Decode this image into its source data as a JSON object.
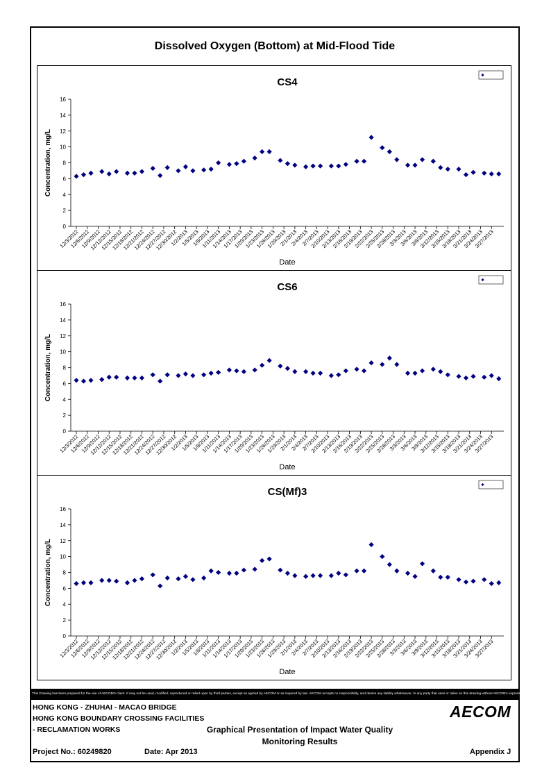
{
  "page_title": "Dissolved Oxygen (Bottom) at Mid-Flood Tide",
  "chart_data": [
    {
      "type": "scatter",
      "title": "CS4",
      "xlabel": "Date",
      "ylabel": "Concentration, mg/L",
      "ylim": [
        0,
        16
      ],
      "yticks": [
        0,
        2,
        4,
        6,
        8,
        10,
        12,
        14,
        16
      ],
      "legend_placement": "top-right",
      "grid": false,
      "marker_color": "#000080",
      "x_tick_labels": [
        "12/3/2012",
        "12/6/2012",
        "12/9/2012",
        "12/12/2012",
        "12/15/2012",
        "12/18/2012",
        "12/21/2012",
        "12/24/2012",
        "12/27/2012",
        "12/30/2012",
        "1/2/2013",
        "1/5/2013",
        "1/8/2013",
        "1/11/2013",
        "1/14/2013",
        "1/17/2013",
        "1/20/2013",
        "1/23/2013",
        "1/26/2013",
        "1/29/2013",
        "2/1/2013",
        "2/4/2013",
        "2/7/2013",
        "2/10/2013",
        "2/13/2013",
        "2/16/2013",
        "2/19/2013",
        "2/22/2013",
        "2/25/2013",
        "2/28/2013",
        "3/3/2013",
        "3/6/2013",
        "3/9/2013",
        "3/12/2013",
        "3/15/2013",
        "3/18/2013",
        "3/21/2013",
        "3/24/2013",
        "3/27/2013"
      ],
      "x": [
        "2012-12-03",
        "2012-12-05",
        "2012-12-07",
        "2012-12-10",
        "2012-12-12",
        "2012-12-14",
        "2012-12-17",
        "2012-12-19",
        "2012-12-21",
        "2012-12-24",
        "2012-12-26",
        "2012-12-28",
        "2012-12-31",
        "2013-01-02",
        "2013-01-04",
        "2013-01-07",
        "2013-01-09",
        "2013-01-11",
        "2013-01-14",
        "2013-01-16",
        "2013-01-18",
        "2013-01-21",
        "2013-01-23",
        "2013-01-25",
        "2013-01-28",
        "2013-01-30",
        "2013-02-01",
        "2013-02-04",
        "2013-02-06",
        "2013-02-08",
        "2013-02-11",
        "2013-02-13",
        "2013-02-15",
        "2013-02-18",
        "2013-02-20",
        "2013-02-22",
        "2013-02-25",
        "2013-02-27",
        "2013-03-01",
        "2013-03-04",
        "2013-03-06",
        "2013-03-08",
        "2013-03-11",
        "2013-03-13",
        "2013-03-15",
        "2013-03-18",
        "2013-03-20",
        "2013-03-22",
        "2013-03-25",
        "2013-03-27",
        "2013-03-29"
      ],
      "series": [
        {
          "values": [
            6.3,
            6.5,
            6.7,
            6.9,
            6.6,
            6.9,
            6.7,
            6.7,
            6.9,
            7.3,
            6.4,
            7.4,
            7.0,
            7.5,
            7.0,
            7.1,
            7.2,
            8.0,
            7.8,
            7.9,
            8.2,
            8.6,
            9.4,
            9.4,
            8.3,
            7.9,
            7.7,
            7.5,
            7.6,
            7.6,
            7.6,
            7.6,
            7.8,
            8.2,
            8.2,
            11.2,
            9.9,
            9.4,
            8.4,
            7.7,
            7.7,
            8.4,
            8.2,
            7.4,
            7.2,
            7.2,
            6.5,
            6.8,
            6.7,
            6.6,
            6.6
          ]
        }
      ]
    },
    {
      "type": "scatter",
      "title": "CS6",
      "xlabel": "Date",
      "ylabel": "Concentration, mg/L",
      "ylim": [
        0,
        16
      ],
      "yticks": [
        0,
        2,
        4,
        6,
        8,
        10,
        12,
        14,
        16
      ],
      "legend_placement": "top-right",
      "grid": false,
      "marker_color": "#000080",
      "x_tick_labels": [
        "12/3/2012",
        "12/6/2012",
        "12/9/2012",
        "12/12/2012",
        "12/15/2012",
        "12/18/2012",
        "12/21/2012",
        "12/24/2012",
        "12/27/2012",
        "12/30/2012",
        "1/2/2013",
        "1/5/2013",
        "1/8/2013",
        "1/11/2013",
        "1/14/2013",
        "1/17/2013",
        "1/20/2013",
        "1/23/2013",
        "1/26/2013",
        "1/29/2013",
        "2/1/2013",
        "2/4/2013",
        "2/7/2013",
        "2/10/2013",
        "2/13/2013",
        "2/16/2013",
        "2/19/2013",
        "2/22/2013",
        "2/25/2013",
        "2/28/2013",
        "3/3/2013",
        "3/6/2013",
        "3/9/2013",
        "3/12/2013",
        "3/15/2013",
        "3/18/2013",
        "3/21/2013",
        "3/24/2013",
        "3/27/2013"
      ],
      "x": [
        "2012-12-03",
        "2012-12-05",
        "2012-12-07",
        "2012-12-10",
        "2012-12-12",
        "2012-12-14",
        "2012-12-17",
        "2012-12-19",
        "2012-12-21",
        "2012-12-24",
        "2012-12-26",
        "2012-12-28",
        "2012-12-31",
        "2013-01-02",
        "2013-01-04",
        "2013-01-07",
        "2013-01-09",
        "2013-01-11",
        "2013-01-14",
        "2013-01-16",
        "2013-01-18",
        "2013-01-21",
        "2013-01-23",
        "2013-01-25",
        "2013-01-28",
        "2013-01-30",
        "2013-02-01",
        "2013-02-04",
        "2013-02-06",
        "2013-02-08",
        "2013-02-11",
        "2013-02-13",
        "2013-02-15",
        "2013-02-18",
        "2013-02-20",
        "2013-02-22",
        "2013-02-25",
        "2013-02-27",
        "2013-03-01",
        "2013-03-04",
        "2013-03-06",
        "2013-03-08",
        "2013-03-11",
        "2013-03-13",
        "2013-03-15",
        "2013-03-18",
        "2013-03-20",
        "2013-03-22",
        "2013-03-25",
        "2013-03-27",
        "2013-03-29"
      ],
      "series": [
        {
          "values": [
            6.4,
            6.3,
            6.4,
            6.5,
            6.8,
            6.8,
            6.7,
            6.7,
            6.7,
            7.1,
            6.3,
            7.1,
            7.0,
            7.2,
            7.0,
            7.1,
            7.3,
            7.4,
            7.7,
            7.6,
            7.5,
            7.7,
            8.3,
            8.9,
            8.2,
            7.9,
            7.5,
            7.5,
            7.3,
            7.3,
            7.0,
            7.1,
            7.6,
            7.8,
            7.6,
            8.6,
            8.4,
            9.2,
            8.4,
            7.3,
            7.3,
            7.6,
            7.8,
            7.5,
            7.1,
            6.9,
            6.7,
            6.9,
            6.8,
            7.0,
            6.6
          ]
        }
      ]
    },
    {
      "type": "scatter",
      "title": "CS(Mf)3",
      "xlabel": "Date",
      "ylabel": "Concentration, mg/L",
      "ylim": [
        0,
        16
      ],
      "yticks": [
        0,
        2,
        4,
        6,
        8,
        10,
        12,
        14,
        16
      ],
      "legend_placement": "top-right",
      "grid": false,
      "marker_color": "#000080",
      "x_tick_labels": [
        "12/3/2012",
        "12/6/2012",
        "12/9/2012",
        "12/12/2012",
        "12/15/2012",
        "12/18/2012",
        "12/21/2012",
        "12/24/2012",
        "12/27/2012",
        "12/30/2012",
        "1/2/2013",
        "1/5/2013",
        "1/8/2013",
        "1/11/2013",
        "1/14/2013",
        "1/17/2013",
        "1/20/2013",
        "1/23/2013",
        "1/26/2013",
        "1/29/2013",
        "2/1/2013",
        "2/4/2013",
        "2/7/2013",
        "2/10/2013",
        "2/13/2013",
        "2/16/2013",
        "2/19/2013",
        "2/22/2013",
        "2/25/2013",
        "2/28/2013",
        "3/3/2013",
        "3/6/2013",
        "3/9/2013",
        "3/12/2013",
        "3/15/2013",
        "3/18/2013",
        "3/21/2013",
        "3/24/2013",
        "3/27/2013"
      ],
      "x": [
        "2012-12-03",
        "2012-12-05",
        "2012-12-07",
        "2012-12-10",
        "2012-12-12",
        "2012-12-14",
        "2012-12-17",
        "2012-12-19",
        "2012-12-21",
        "2012-12-24",
        "2012-12-26",
        "2012-12-28",
        "2012-12-31",
        "2013-01-02",
        "2013-01-04",
        "2013-01-07",
        "2013-01-09",
        "2013-01-11",
        "2013-01-14",
        "2013-01-16",
        "2013-01-18",
        "2013-01-21",
        "2013-01-23",
        "2013-01-25",
        "2013-01-28",
        "2013-01-30",
        "2013-02-01",
        "2013-02-04",
        "2013-02-06",
        "2013-02-08",
        "2013-02-11",
        "2013-02-13",
        "2013-02-15",
        "2013-02-18",
        "2013-02-20",
        "2013-02-22",
        "2013-02-25",
        "2013-02-27",
        "2013-03-01",
        "2013-03-04",
        "2013-03-06",
        "2013-03-08",
        "2013-03-11",
        "2013-03-13",
        "2013-03-15",
        "2013-03-18",
        "2013-03-20",
        "2013-03-22",
        "2013-03-25",
        "2013-03-27",
        "2013-03-29"
      ],
      "series": [
        {
          "values": [
            6.6,
            6.7,
            6.7,
            7.0,
            7.0,
            6.9,
            6.7,
            7.0,
            7.2,
            7.7,
            6.3,
            7.3,
            7.2,
            7.5,
            7.1,
            7.3,
            8.2,
            8.0,
            7.9,
            7.9,
            8.3,
            8.4,
            9.5,
            9.7,
            8.3,
            7.9,
            7.6,
            7.5,
            7.6,
            7.6,
            7.6,
            7.9,
            7.7,
            8.2,
            8.2,
            11.5,
            10.0,
            9.0,
            8.2,
            7.9,
            7.5,
            9.1,
            8.2,
            7.4,
            7.4,
            7.1,
            6.8,
            6.9,
            7.1,
            6.6,
            6.7
          ]
        }
      ]
    }
  ],
  "disclaimer": "This Drawing has been prepared for the use of AECOM's client. It may not be used, modified, reproduced or relied upon by third parties, except as agreed by AECOM or as required by law. AECOM accepts no responsibility, and denies any liability whatsoever, to any party that uses or relies on this drawing without AECOM's express written consent.",
  "title_block": {
    "project_line1": "HONG KONG - ZHUHAI - MACAO BRIDGE",
    "project_line2": "HONG KONG BOUNDARY CROSSING FACILITIES",
    "project_line3": "- RECLAMATION WORKS",
    "doc_title_line1": "Graphical Presentation of Impact Water Quality",
    "doc_title_line2": "Monitoring Results",
    "project_no": "Project No.: 60249820",
    "date": "Date: Apr 2013",
    "appendix": "Appendix J",
    "logo_text": "AECOM"
  }
}
